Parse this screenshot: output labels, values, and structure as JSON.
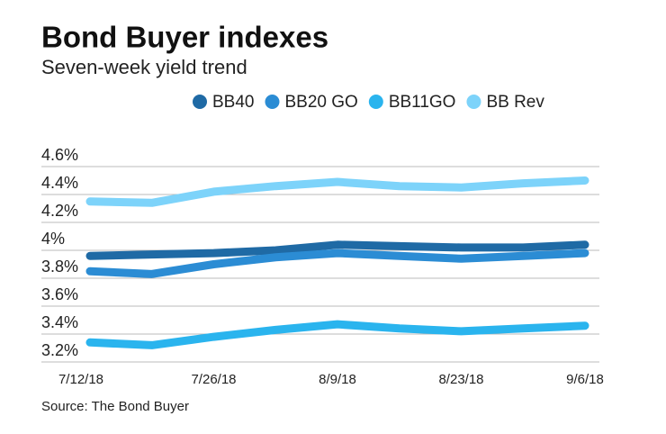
{
  "chart_data": {
    "type": "line",
    "title": "Bond Buyer indexes",
    "subtitle": "Seven-week yield trend",
    "source": "Source: The Bond Buyer",
    "categories": [
      "7/12/18",
      null,
      "7/26/18",
      null,
      "8/9/18",
      null,
      "8/23/18",
      null,
      "9/6/18"
    ],
    "series": [
      {
        "name": "BB40",
        "color": "#1f6aa5",
        "values": [
          3.96,
          3.97,
          3.98,
          4.0,
          4.04,
          4.03,
          4.02,
          4.02,
          4.04
        ]
      },
      {
        "name": "BB20 GO",
        "color": "#2b8cd4",
        "values": [
          3.85,
          3.83,
          3.9,
          3.95,
          3.98,
          3.96,
          3.94,
          3.96,
          3.98
        ]
      },
      {
        "name": "BB11GO",
        "color": "#2ab4ee",
        "values": [
          3.34,
          3.32,
          3.38,
          3.43,
          3.47,
          3.44,
          3.42,
          3.44,
          3.46
        ]
      },
      {
        "name": "BB Rev",
        "color": "#7dd3fa",
        "values": [
          4.35,
          4.34,
          4.42,
          4.46,
          4.49,
          4.46,
          4.45,
          4.48,
          4.5
        ]
      }
    ],
    "ylim": [
      3.2,
      4.6
    ],
    "yticks": [
      {
        "value": 3.2,
        "label": "3.2%"
      },
      {
        "value": 3.4,
        "label": "3.4%"
      },
      {
        "value": 3.6,
        "label": "3.6%"
      },
      {
        "value": 3.8,
        "label": "3.8%"
      },
      {
        "value": 4,
        "label": "4%"
      },
      {
        "value": 4.2,
        "label": "4.2%"
      },
      {
        "value": 4.4,
        "label": "4.4%"
      },
      {
        "value": 4.6,
        "label": "4.6%"
      }
    ],
    "grid": true
  }
}
